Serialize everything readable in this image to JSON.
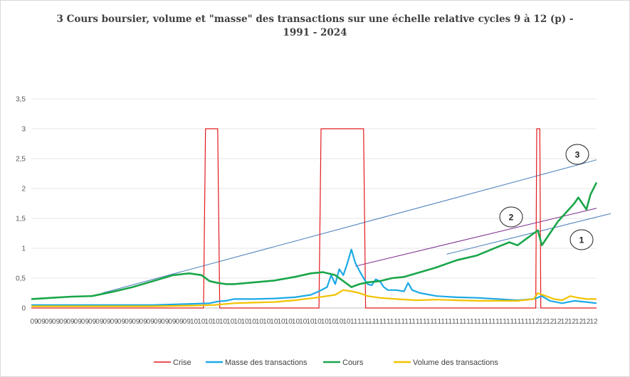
{
  "chart_data": {
    "type": "line",
    "title": "3 Cours boursier, volume et \"masse\" des transactions sur une échelle relative cycles 9 à 12 (p) - 1991 - 2024",
    "ylim": [
      0,
      3.5
    ],
    "yticks": [
      "0",
      "0,5",
      "1",
      "1,5",
      "2",
      "2,5",
      "3",
      "3,5"
    ],
    "xticks": [
      "09",
      "09",
      "09",
      "09",
      "09",
      "09",
      "09",
      "09",
      "09",
      "09",
      "09",
      "09",
      "09",
      "09",
      "09",
      "09",
      "09",
      "09",
      "09",
      "09",
      "09",
      "09",
      "10",
      "10",
      "10",
      "10",
      "10",
      "10",
      "10",
      "10",
      "10",
      "10",
      "10",
      "10",
      "10",
      "10",
      "10",
      "10",
      "10",
      "10",
      "10",
      "10",
      "10",
      "10",
      "11",
      "11",
      "11",
      "11",
      "11",
      "11",
      "11",
      "11",
      "11",
      "11",
      "11",
      "11",
      "11",
      "11",
      "11",
      "11",
      "11",
      "11",
      "11",
      "11",
      "11",
      "11",
      "11",
      "11",
      "11",
      "12",
      "12",
      "12",
      "12",
      "12",
      "12",
      "12",
      "12",
      "12"
    ],
    "series": [
      {
        "name": "Crise",
        "color": "#e31a1c",
        "values": [
          [
            0,
            0
          ],
          [
            85,
            0
          ],
          [
            86,
            3
          ],
          [
            92,
            3
          ],
          [
            93,
            0
          ],
          [
            142,
            0
          ],
          [
            143,
            3
          ],
          [
            164,
            3
          ],
          [
            165,
            0
          ],
          [
            249,
            0
          ],
          [
            249.5,
            3
          ],
          [
            251,
            3
          ],
          [
            251.5,
            0
          ],
          [
            279,
            0
          ]
        ]
      },
      {
        "name": "Masse des transactions",
        "color": "#1ca9e6",
        "values": [
          [
            0,
            0.05
          ],
          [
            20,
            0.05
          ],
          [
            40,
            0.05
          ],
          [
            60,
            0.05
          ],
          [
            80,
            0.07
          ],
          [
            88,
            0.08
          ],
          [
            92,
            0.11
          ],
          [
            96,
            0.12
          ],
          [
            100,
            0.15
          ],
          [
            110,
            0.15
          ],
          [
            120,
            0.16
          ],
          [
            130,
            0.18
          ],
          [
            138,
            0.22
          ],
          [
            142,
            0.28
          ],
          [
            146,
            0.35
          ],
          [
            148,
            0.55
          ],
          [
            150,
            0.4
          ],
          [
            152,
            0.65
          ],
          [
            154,
            0.55
          ],
          [
            156,
            0.75
          ],
          [
            158,
            0.98
          ],
          [
            160,
            0.75
          ],
          [
            162,
            0.62
          ],
          [
            164,
            0.5
          ],
          [
            166,
            0.4
          ],
          [
            168,
            0.38
          ],
          [
            170,
            0.48
          ],
          [
            172,
            0.45
          ],
          [
            174,
            0.35
          ],
          [
            176,
            0.3
          ],
          [
            180,
            0.3
          ],
          [
            184,
            0.28
          ],
          [
            186,
            0.42
          ],
          [
            188,
            0.3
          ],
          [
            192,
            0.25
          ],
          [
            200,
            0.2
          ],
          [
            210,
            0.18
          ],
          [
            220,
            0.17
          ],
          [
            230,
            0.15
          ],
          [
            240,
            0.13
          ],
          [
            248,
            0.15
          ],
          [
            252,
            0.2
          ],
          [
            256,
            0.12
          ],
          [
            262,
            0.08
          ],
          [
            268,
            0.12
          ],
          [
            274,
            0.1
          ],
          [
            279,
            0.08
          ]
        ]
      },
      {
        "name": "Cours",
        "color": "#1aa64a",
        "values": [
          [
            0,
            0.15
          ],
          [
            10,
            0.17
          ],
          [
            20,
            0.19
          ],
          [
            30,
            0.2
          ],
          [
            40,
            0.27
          ],
          [
            50,
            0.35
          ],
          [
            60,
            0.45
          ],
          [
            70,
            0.55
          ],
          [
            78,
            0.58
          ],
          [
            84,
            0.55
          ],
          [
            88,
            0.45
          ],
          [
            92,
            0.42
          ],
          [
            96,
            0.4
          ],
          [
            100,
            0.4
          ],
          [
            110,
            0.43
          ],
          [
            120,
            0.46
          ],
          [
            130,
            0.52
          ],
          [
            138,
            0.58
          ],
          [
            144,
            0.6
          ],
          [
            150,
            0.55
          ],
          [
            154,
            0.45
          ],
          [
            158,
            0.35
          ],
          [
            162,
            0.4
          ],
          [
            166,
            0.43
          ],
          [
            172,
            0.45
          ],
          [
            178,
            0.5
          ],
          [
            184,
            0.52
          ],
          [
            190,
            0.58
          ],
          [
            200,
            0.68
          ],
          [
            210,
            0.8
          ],
          [
            220,
            0.88
          ],
          [
            230,
            1.02
          ],
          [
            236,
            1.1
          ],
          [
            240,
            1.05
          ],
          [
            244,
            1.15
          ],
          [
            248,
            1.25
          ],
          [
            250,
            1.3
          ],
          [
            252,
            1.05
          ],
          [
            256,
            1.25
          ],
          [
            260,
            1.45
          ],
          [
            264,
            1.6
          ],
          [
            268,
            1.75
          ],
          [
            270,
            1.85
          ],
          [
            272,
            1.75
          ],
          [
            274,
            1.65
          ],
          [
            276,
            1.9
          ],
          [
            279,
            2.1
          ]
        ]
      },
      {
        "name": "Volume des transactions",
        "color": "#f2c200",
        "values": [
          [
            0,
            0.03
          ],
          [
            20,
            0.03
          ],
          [
            40,
            0.03
          ],
          [
            60,
            0.03
          ],
          [
            80,
            0.04
          ],
          [
            90,
            0.05
          ],
          [
            100,
            0.08
          ],
          [
            110,
            0.09
          ],
          [
            120,
            0.1
          ],
          [
            130,
            0.13
          ],
          [
            140,
            0.17
          ],
          [
            146,
            0.2
          ],
          [
            150,
            0.22
          ],
          [
            154,
            0.3
          ],
          [
            158,
            0.28
          ],
          [
            162,
            0.25
          ],
          [
            166,
            0.2
          ],
          [
            172,
            0.17
          ],
          [
            180,
            0.15
          ],
          [
            190,
            0.13
          ],
          [
            200,
            0.14
          ],
          [
            210,
            0.13
          ],
          [
            220,
            0.12
          ],
          [
            230,
            0.12
          ],
          [
            240,
            0.12
          ],
          [
            248,
            0.15
          ],
          [
            250,
            0.25
          ],
          [
            254,
            0.2
          ],
          [
            258,
            0.15
          ],
          [
            262,
            0.13
          ],
          [
            266,
            0.2
          ],
          [
            270,
            0.17
          ],
          [
            274,
            0.15
          ],
          [
            279,
            0.15
          ]
        ]
      }
    ],
    "trendlines": [
      {
        "label": "1",
        "from": [
          205,
          0.9
        ],
        "to": [
          279,
          1.58
        ]
      },
      {
        "label": "2",
        "from": [
          160,
          0.7
        ],
        "to": [
          279,
          1.67
        ]
      },
      {
        "label": "3",
        "from": [
          35,
          0.25
        ],
        "to": [
          279,
          2.48
        ]
      }
    ],
    "trendline_color": "#4a7ebb",
    "trendline_alt_color": "#7b2c8c",
    "annotations": [
      "1",
      "2",
      "3"
    ],
    "legend": [
      "Crise",
      "Masse des transactions",
      "Cours",
      "Volume des transactions"
    ],
    "legend_position": "bottom",
    "grid": true
  }
}
